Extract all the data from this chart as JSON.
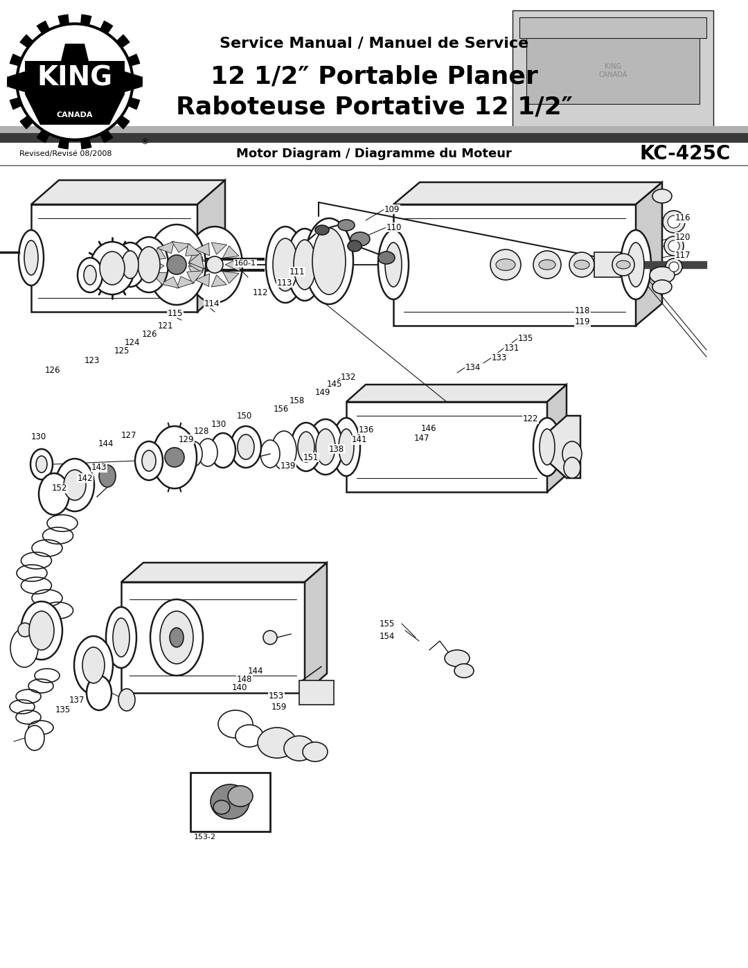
{
  "page_width": 10.8,
  "page_height": 13.97,
  "background": "#ffffff",
  "header": {
    "service_manual_text": "Service Manual / Manuel de Service",
    "title_line1": "12 1/2″ Portable Planer",
    "title_line2": "Raboteuse Portative 12 1/2″",
    "revised_text": "Revised/Revisé 08/2008",
    "diagram_title": "Motor Diagram / Diagramme du Moteur",
    "model": "KC-425C"
  }
}
